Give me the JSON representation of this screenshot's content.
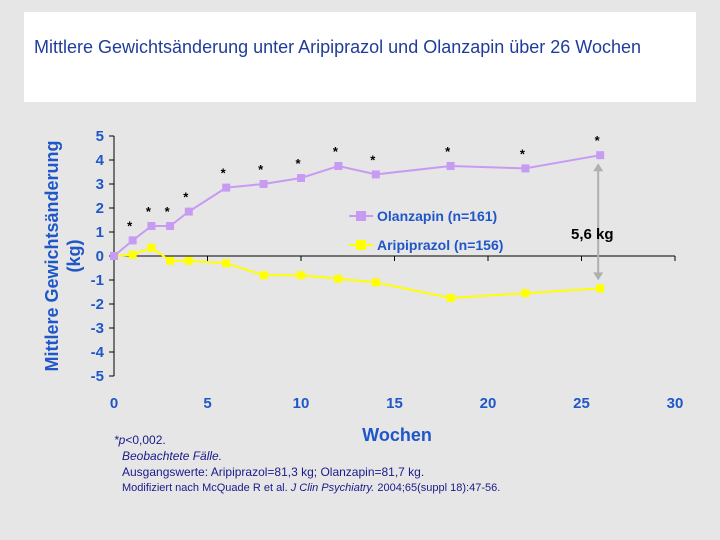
{
  "title": "Mittlere Gewichtsänderung unter Aripiprazol und Olanzapin über 26 Wochen",
  "colors": {
    "background": "#e6e6e6",
    "title_box": "#ffffff",
    "title_text": "#1f3d9a",
    "axis_text": "#1f56c8",
    "olanzapin": "#c89bf2",
    "aripiprazol": "#ffff00",
    "arrow": "#b0b0b0"
  },
  "chart_data": {
    "type": "line",
    "xlabel": "Wochen",
    "ylabel": "Mittlere Gewichtsänderung (kg)",
    "xlim": [
      0,
      30
    ],
    "ylim": [
      -5,
      5
    ],
    "xticks": [
      0,
      5,
      10,
      15,
      20,
      25,
      30
    ],
    "yticks": [
      5,
      4,
      3,
      2,
      1,
      0,
      -1,
      -2,
      -3,
      -4,
      -5
    ],
    "grid": false,
    "legend": "center-right",
    "series": [
      {
        "name": "Olanzapin (n=161)",
        "color": "#c89bf2",
        "marker": "square",
        "x": [
          0,
          1,
          2,
          3,
          4,
          6,
          8,
          10,
          12,
          14,
          18,
          22,
          26
        ],
        "y": [
          0,
          0.65,
          1.25,
          1.25,
          1.85,
          2.85,
          3.0,
          3.25,
          3.75,
          3.4,
          3.75,
          3.65,
          4.2
        ]
      },
      {
        "name": "Aripiprazol (n=156)",
        "color": "#ffff00",
        "marker": "square",
        "x": [
          0,
          1,
          2,
          3,
          4,
          6,
          8,
          10,
          12,
          14,
          18,
          22,
          26
        ],
        "y": [
          0,
          0.05,
          0.35,
          -0.2,
          -0.2,
          -0.3,
          -0.8,
          -0.8,
          -0.95,
          -1.1,
          -1.75,
          -1.55,
          -1.35
        ]
      }
    ],
    "significance": {
      "symbol": "*",
      "weeks": [
        1,
        2,
        3,
        4,
        6,
        8,
        10,
        12,
        14,
        18,
        22,
        26
      ]
    },
    "difference": {
      "label": "5,6 kg",
      "week": 26
    }
  },
  "footnotes": {
    "p_star": "*",
    "p_italic": "p",
    "p_rest": "<0,002.",
    "observed": "Beobachtete Fälle.",
    "baseline": "Ausgangswerte: Aripiprazol=81,3 kg; Olanzapin=81,7 kg.",
    "source_prefix": "Modifiziert nach McQuade R et al. ",
    "source_journal": "J Clin Psychiatry.",
    "source_suffix": " 2004;65(suppl 18):47-56."
  }
}
